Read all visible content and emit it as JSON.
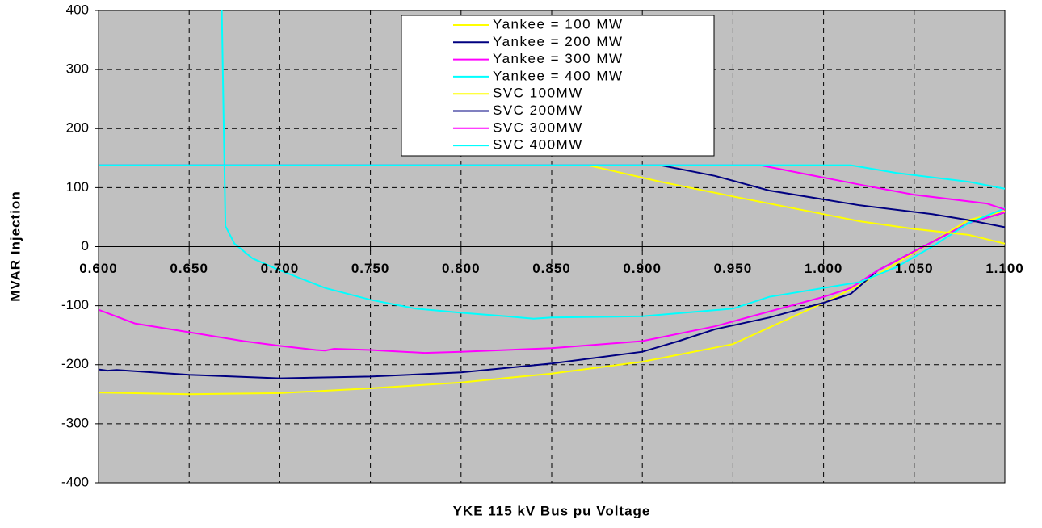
{
  "chart_data": {
    "type": "line",
    "xlabel": "YKE 115 kV Bus pu Voltage",
    "ylabel": "MVAR Injection",
    "xlim": [
      0.6,
      1.1
    ],
    "xticks": [
      {
        "value": 0.6,
        "label": "0.600"
      },
      {
        "value": 0.65,
        "label": "0.650"
      },
      {
        "value": 0.7,
        "label": "0.700"
      },
      {
        "value": 0.75,
        "label": "0.750"
      },
      {
        "value": 0.8,
        "label": "0.800"
      },
      {
        "value": 0.85,
        "label": "0.850"
      },
      {
        "value": 0.9,
        "label": "0.900"
      },
      {
        "value": 0.95,
        "label": "0.950"
      },
      {
        "value": 1.0,
        "label": "1.000"
      },
      {
        "value": 1.05,
        "label": "1.050"
      },
      {
        "value": 1.1,
        "label": "1.100"
      }
    ],
    "ylim": [
      -400,
      400
    ],
    "yticks": [
      400,
      300,
      200,
      100,
      0,
      -100,
      -200,
      -300,
      -400
    ],
    "grid": true,
    "legend": "top",
    "series": [
      {
        "name": "Yankee = 100 MW",
        "color": "#ffff00",
        "x": [
          0.6,
          0.65,
          0.7,
          0.75,
          0.8,
          0.85,
          0.9,
          0.95,
          1.0,
          1.02,
          1.05,
          1.08,
          1.1
        ],
        "values": [
          -247,
          -250,
          -248,
          -240,
          -230,
          -215,
          -195,
          -165,
          -95,
          -65,
          -10,
          45,
          60
        ]
      },
      {
        "name": "Yankee = 200 MW",
        "color": "#000080",
        "x": [
          0.6,
          0.605,
          0.61,
          0.65,
          0.7,
          0.75,
          0.8,
          0.85,
          0.9,
          0.92,
          0.94,
          0.97,
          1.0,
          1.015,
          1.03,
          1.055,
          1.08,
          1.1
        ],
        "values": [
          -208,
          -210,
          -209,
          -217,
          -223,
          -220,
          -213,
          -198,
          -178,
          -160,
          -140,
          -120,
          -95,
          -80,
          -40,
          0,
          40,
          58
        ]
      },
      {
        "name": "Yankee = 300 MW",
        "color": "#ff00ff",
        "x": [
          0.6,
          0.62,
          0.65,
          0.68,
          0.7,
          0.72,
          0.725,
          0.73,
          0.75,
          0.78,
          0.8,
          0.85,
          0.9,
          0.94,
          0.97,
          1.0,
          1.015,
          1.03,
          1.055,
          1.08,
          1.1
        ],
        "values": [
          -107,
          -130,
          -145,
          -160,
          -168,
          -175,
          -176,
          -173,
          -175,
          -180,
          -178,
          -172,
          -160,
          -135,
          -110,
          -85,
          -70,
          -40,
          0,
          40,
          58
        ]
      },
      {
        "name": "Yankee = 400 MW",
        "color": "#00ffff",
        "x": [
          0.668,
          0.67,
          0.675,
          0.685,
          0.7,
          0.725,
          0.75,
          0.775,
          0.8,
          0.825,
          0.84,
          0.85,
          0.9,
          0.95,
          0.97,
          1.0,
          1.02,
          1.04,
          1.06,
          1.08,
          1.1
        ],
        "values": [
          400,
          35,
          5,
          -20,
          -40,
          -70,
          -90,
          -105,
          -112,
          -118,
          -122,
          -120,
          -118,
          -105,
          -85,
          -70,
          -60,
          -35,
          0,
          40,
          65
        ]
      },
      {
        "name": "SVC 100MW",
        "color": "#ffff00",
        "x": [
          0.6,
          0.87,
          0.91,
          0.95,
          1.0,
          1.02,
          1.05,
          1.08,
          1.1
        ],
        "values": [
          138,
          138,
          110,
          85,
          55,
          43,
          30,
          20,
          5
        ]
      },
      {
        "name": "SVC 200MW",
        "color": "#000080",
        "x": [
          0.6,
          0.91,
          0.94,
          0.97,
          1.02,
          1.06,
          1.08,
          1.1
        ],
        "values": [
          138,
          138,
          120,
          95,
          70,
          55,
          45,
          33
        ]
      },
      {
        "name": "SVC 300MW",
        "color": "#ff00ff",
        "x": [
          0.6,
          0.965,
          1.02,
          1.05,
          1.09,
          1.1
        ],
        "values": [
          138,
          138,
          105,
          88,
          73,
          63
        ]
      },
      {
        "name": "SVC 400MW",
        "color": "#00ffff",
        "x": [
          0.6,
          1.015,
          1.04,
          1.08,
          1.1
        ],
        "values": [
          138,
          138,
          125,
          110,
          98
        ]
      }
    ]
  }
}
